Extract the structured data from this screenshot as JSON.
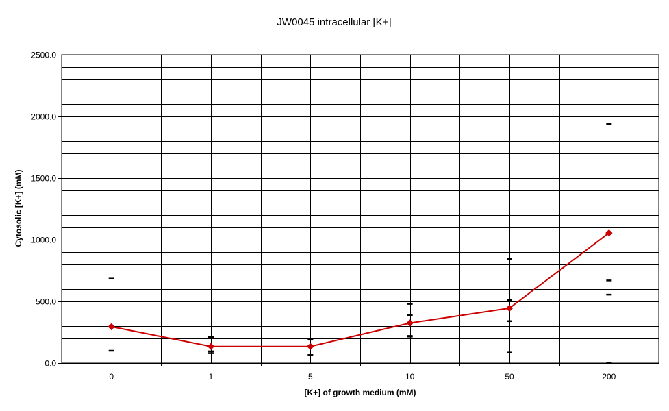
{
  "chart_data": {
    "type": "line",
    "title": "JW0045 intracellular [K+]",
    "xlabel": "[K+] of growth medium (mM)",
    "ylabel": "Cytosolic [K+] (mM)",
    "categories": [
      "0",
      "1",
      "5",
      "10",
      "50",
      "200"
    ],
    "ylim": [
      0,
      2500
    ],
    "y_ticks": [
      "0.0",
      "500.0",
      "1000.0",
      "1500.0",
      "2000.0",
      "2500.0"
    ],
    "grid": true,
    "legend": "none",
    "series": [
      {
        "values": [
          295,
          135,
          135,
          325,
          445,
          1055
        ],
        "color": "#cc0000"
      }
    ],
    "error_bars": [
      {
        "category": "0",
        "marks": [
          685,
          100
        ]
      },
      {
        "category": "1",
        "marks": [
          210,
          95,
          80
        ]
      },
      {
        "category": "5",
        "marks": [
          190,
          140,
          65
        ]
      },
      {
        "category": "10",
        "marks": [
          480,
          390,
          220,
          215
        ]
      },
      {
        "category": "50",
        "marks": [
          845,
          510,
          340,
          85
        ]
      },
      {
        "category": "200",
        "marks": [
          1940,
          670,
          555,
          0
        ]
      }
    ]
  }
}
